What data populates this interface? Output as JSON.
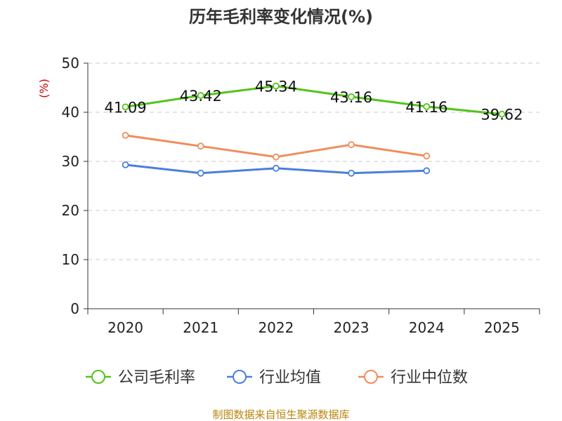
{
  "chart_data": {
    "type": "line",
    "title": "历年毛利率变化情况(%)",
    "ylabel": "(%)",
    "xlabel": "",
    "categories": [
      "2020",
      "2021",
      "2022",
      "2023",
      "2024",
      "2025"
    ],
    "ylim": [
      0,
      50
    ],
    "yticks": [
      0,
      10,
      20,
      30,
      40,
      50
    ],
    "grid": true,
    "legend_position": "bottom",
    "series": [
      {
        "name": "公司毛利率",
        "color": "#52c41a",
        "values": [
          41.09,
          43.42,
          45.34,
          43.16,
          41.16,
          39.62
        ],
        "labels": [
          "41.09",
          "43.42",
          "45.34",
          "43.16",
          "41.16",
          "39.62"
        ]
      },
      {
        "name": "行业均值",
        "color": "#4a7fdc",
        "values": [
          29.3,
          27.6,
          28.6,
          27.6,
          28.1,
          null
        ]
      },
      {
        "name": "行业中位数",
        "color": "#f08c5a",
        "values": [
          35.3,
          33.1,
          30.9,
          33.4,
          31.1,
          null
        ]
      }
    ]
  },
  "source_text": "制图数据来自恒生聚源数据库"
}
